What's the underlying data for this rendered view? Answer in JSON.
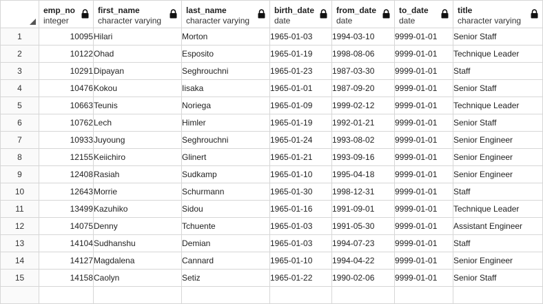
{
  "columns": [
    {
      "name": "emp_no",
      "type": "integer",
      "lock_icon": "lock-icon"
    },
    {
      "name": "first_name",
      "type": "character varying",
      "lock_icon": "lock-icon"
    },
    {
      "name": "last_name",
      "type": "character varying",
      "lock_icon": "lock-icon"
    },
    {
      "name": "birth_date",
      "type": "date",
      "lock_icon": "lock-icon"
    },
    {
      "name": "from_date",
      "type": "date",
      "lock_icon": "lock-icon"
    },
    {
      "name": "to_date",
      "type": "date",
      "lock_icon": "lock-icon"
    },
    {
      "name": "title",
      "type": "character varying",
      "lock_icon": "lock-icon"
    }
  ],
  "rows": [
    {
      "n": "1",
      "emp_no": "10095",
      "first_name": "Hilari",
      "last_name": "Morton",
      "birth_date": "1965-01-03",
      "from_date": "1994-03-10",
      "to_date": "9999-01-01",
      "title": "Senior Staff"
    },
    {
      "n": "2",
      "emp_no": "10122",
      "first_name": "Ohad",
      "last_name": "Esposito",
      "birth_date": "1965-01-19",
      "from_date": "1998-08-06",
      "to_date": "9999-01-01",
      "title": "Technique Leader"
    },
    {
      "n": "3",
      "emp_no": "10291",
      "first_name": "Dipayan",
      "last_name": "Seghrouchni",
      "birth_date": "1965-01-23",
      "from_date": "1987-03-30",
      "to_date": "9999-01-01",
      "title": "Staff"
    },
    {
      "n": "4",
      "emp_no": "10476",
      "first_name": "Kokou",
      "last_name": "Iisaka",
      "birth_date": "1965-01-01",
      "from_date": "1987-09-20",
      "to_date": "9999-01-01",
      "title": "Senior Staff"
    },
    {
      "n": "5",
      "emp_no": "10663",
      "first_name": "Teunis",
      "last_name": "Noriega",
      "birth_date": "1965-01-09",
      "from_date": "1999-02-12",
      "to_date": "9999-01-01",
      "title": "Technique Leader"
    },
    {
      "n": "6",
      "emp_no": "10762",
      "first_name": "Lech",
      "last_name": "Himler",
      "birth_date": "1965-01-19",
      "from_date": "1992-01-21",
      "to_date": "9999-01-01",
      "title": "Senior Staff"
    },
    {
      "n": "7",
      "emp_no": "10933",
      "first_name": "Juyoung",
      "last_name": "Seghrouchni",
      "birth_date": "1965-01-24",
      "from_date": "1993-08-02",
      "to_date": "9999-01-01",
      "title": "Senior Engineer"
    },
    {
      "n": "8",
      "emp_no": "12155",
      "first_name": "Keiichiro",
      "last_name": "Glinert",
      "birth_date": "1965-01-21",
      "from_date": "1993-09-16",
      "to_date": "9999-01-01",
      "title": "Senior Engineer"
    },
    {
      "n": "9",
      "emp_no": "12408",
      "first_name": "Rasiah",
      "last_name": "Sudkamp",
      "birth_date": "1965-01-10",
      "from_date": "1995-04-18",
      "to_date": "9999-01-01",
      "title": "Senior Engineer"
    },
    {
      "n": "10",
      "emp_no": "12643",
      "first_name": "Morrie",
      "last_name": "Schurmann",
      "birth_date": "1965-01-30",
      "from_date": "1998-12-31",
      "to_date": "9999-01-01",
      "title": "Staff"
    },
    {
      "n": "11",
      "emp_no": "13499",
      "first_name": "Kazuhiko",
      "last_name": "Sidou",
      "birth_date": "1965-01-16",
      "from_date": "1991-09-01",
      "to_date": "9999-01-01",
      "title": "Technique Leader"
    },
    {
      "n": "12",
      "emp_no": "14075",
      "first_name": "Denny",
      "last_name": "Tchuente",
      "birth_date": "1965-01-03",
      "from_date": "1991-05-30",
      "to_date": "9999-01-01",
      "title": "Assistant Engineer"
    },
    {
      "n": "13",
      "emp_no": "14104",
      "first_name": "Sudhanshu",
      "last_name": "Demian",
      "birth_date": "1965-01-03",
      "from_date": "1994-07-23",
      "to_date": "9999-01-01",
      "title": "Staff"
    },
    {
      "n": "14",
      "emp_no": "14127",
      "first_name": "Magdalena",
      "last_name": "Cannard",
      "birth_date": "1965-01-10",
      "from_date": "1994-04-22",
      "to_date": "9999-01-01",
      "title": "Senior Engineer"
    },
    {
      "n": "15",
      "emp_no": "14158",
      "first_name": "Caolyn",
      "last_name": "Setiz",
      "birth_date": "1965-01-22",
      "from_date": "1990-02-06",
      "to_date": "9999-01-01",
      "title": "Senior Staff"
    }
  ]
}
